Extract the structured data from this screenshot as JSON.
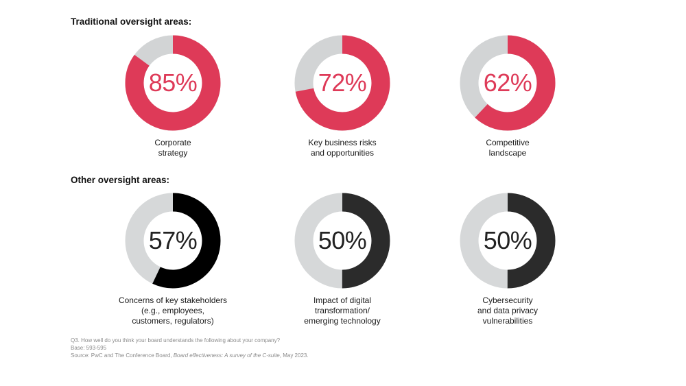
{
  "colors": {
    "traditional_fill": "#de3a58",
    "traditional_track": "#d2d4d5",
    "other_fill": "#2b2b2b",
    "other_fill_first": "#000000",
    "other_track": "#d6d8d9",
    "traditional_text": "#de3a58",
    "other_text": "#222222"
  },
  "sections": {
    "traditional_title": "Traditional oversight areas:",
    "other_title": "Other oversight areas:"
  },
  "chart_data": {
    "type": "pie",
    "groups": [
      {
        "title": "Traditional oversight areas:",
        "items": [
          {
            "value": 85,
            "value_label": "85%",
            "label_lines": [
              "Corporate",
              "strategy"
            ]
          },
          {
            "value": 72,
            "value_label": "72%",
            "label_lines": [
              "Key business risks",
              "and opportunities"
            ]
          },
          {
            "value": 62,
            "value_label": "62%",
            "label_lines": [
              "Competitive",
              "landscape"
            ]
          }
        ]
      },
      {
        "title": "Other oversight areas:",
        "items": [
          {
            "value": 57,
            "value_label": "57%",
            "label_lines": [
              "Concerns of key stakeholders",
              "(e.g., employees,",
              "customers, regulators)"
            ]
          },
          {
            "value": 50,
            "value_label": "50%",
            "label_lines": [
              "Impact of digital",
              "transformation/",
              "emerging technology"
            ]
          },
          {
            "value": 50,
            "value_label": "50%",
            "label_lines": [
              "Cybersecurity",
              "and data privacy",
              "vulnerabilities"
            ]
          }
        ]
      }
    ]
  },
  "footnote": {
    "question": "Q3. How well do you think your board understands the following about your company?",
    "base": "Base: 593-595",
    "source_prefix": "Source: PwC and The Conference Board, ",
    "source_title": "Board effectiveness: A survey of the C-suite",
    "source_suffix": ", May 2023."
  }
}
